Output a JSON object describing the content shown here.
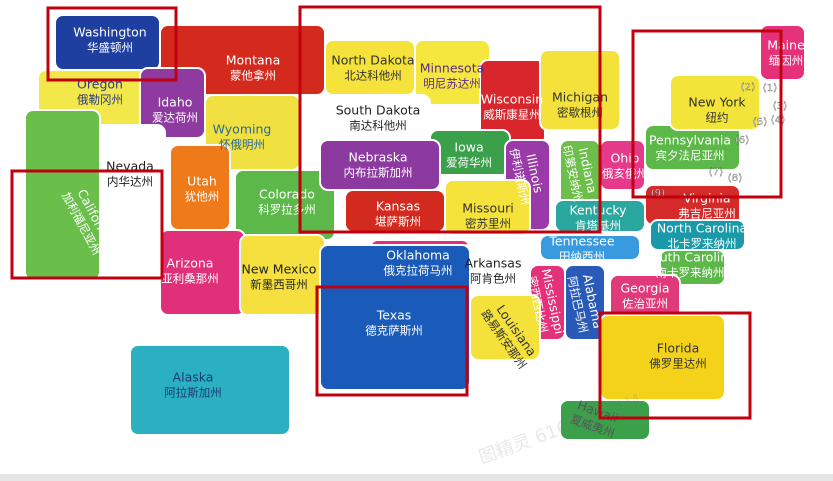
{
  "states": [
    {
      "en": "Washington",
      "zh": "华盛顿州"
    },
    {
      "en": "Montana",
      "zh": "蒙他拿州"
    },
    {
      "en": "Oregon",
      "zh": "俄勒冈州"
    },
    {
      "en": "Idaho",
      "zh": "爱达荷州"
    },
    {
      "en": "Wyoming",
      "zh": "怀俄明州"
    },
    {
      "en": "Nevada",
      "zh": "内华达州"
    },
    {
      "en": "California",
      "zh": "加利福尼亚州"
    },
    {
      "en": "Utah",
      "zh": "犹他州"
    },
    {
      "en": "Colorado",
      "zh": "科罗拉多州"
    },
    {
      "en": "Arizona",
      "zh": "亚利桑那州"
    },
    {
      "en": "New Mexico",
      "zh": "新墨西哥州"
    },
    {
      "en": "North Dakota",
      "zh": "北达科他州"
    },
    {
      "en": "Minnesota",
      "zh": "明尼苏达州"
    },
    {
      "en": "South Dakota",
      "zh": "南达科他州"
    },
    {
      "en": "Wisconsin",
      "zh": "威斯康星州"
    },
    {
      "en": "Michigan",
      "zh": "密歇根州"
    },
    {
      "en": "Iowa",
      "zh": "爱荷华州"
    },
    {
      "en": "Nebraska",
      "zh": "内布拉斯加州"
    },
    {
      "en": "Illinois",
      "zh": "伊利诺斯州"
    },
    {
      "en": "Indiana",
      "zh": "印第安纳州"
    },
    {
      "en": "Ohio",
      "zh": "俄亥俄州"
    },
    {
      "en": "Pennsylvania",
      "zh": "宾夕法尼亚州"
    },
    {
      "en": "New York",
      "zh": "纽约"
    },
    {
      "en": "Maine",
      "zh": "缅因州"
    },
    {
      "en": "Kansas",
      "zh": "堪萨斯州"
    },
    {
      "en": "Missouri",
      "zh": "密苏里州"
    },
    {
      "en": "Kentucky",
      "zh": "肯塔基州"
    },
    {
      "en": "Virginia",
      "zh": "弗吉尼亚州"
    },
    {
      "en": "Tennessee",
      "zh": "田纳西州"
    },
    {
      "en": "North Carolina",
      "zh": "北卡罗来纳州"
    },
    {
      "en": "Oklahoma",
      "zh": "俄克拉荷马州"
    },
    {
      "en": "Arkansas",
      "zh": "阿肯色州"
    },
    {
      "en": "Mississippi",
      "zh": "密西西比州"
    },
    {
      "en": "Alabama",
      "zh": "阿拉巴马州"
    },
    {
      "en": "South Carolina",
      "zh": "南卡罗来纳州"
    },
    {
      "en": "Georgia",
      "zh": "佐治亚州"
    },
    {
      "en": "Louisiana",
      "zh": "路易斯安那州"
    },
    {
      "en": "Texas",
      "zh": "德克萨斯州"
    },
    {
      "en": "Florida",
      "zh": "佛罗里达州"
    },
    {
      "en": "Alaska",
      "zh": "阿拉斯加州"
    },
    {
      "en": "Hawaii",
      "zh": "夏威夷州"
    }
  ],
  "numbers": [
    "(1)",
    "(2)",
    "(3)",
    "(4)",
    "(5)",
    "(6)",
    "(7)",
    "(8)",
    "(9)"
  ],
  "watermark": "图精灵 616PIC.COM"
}
